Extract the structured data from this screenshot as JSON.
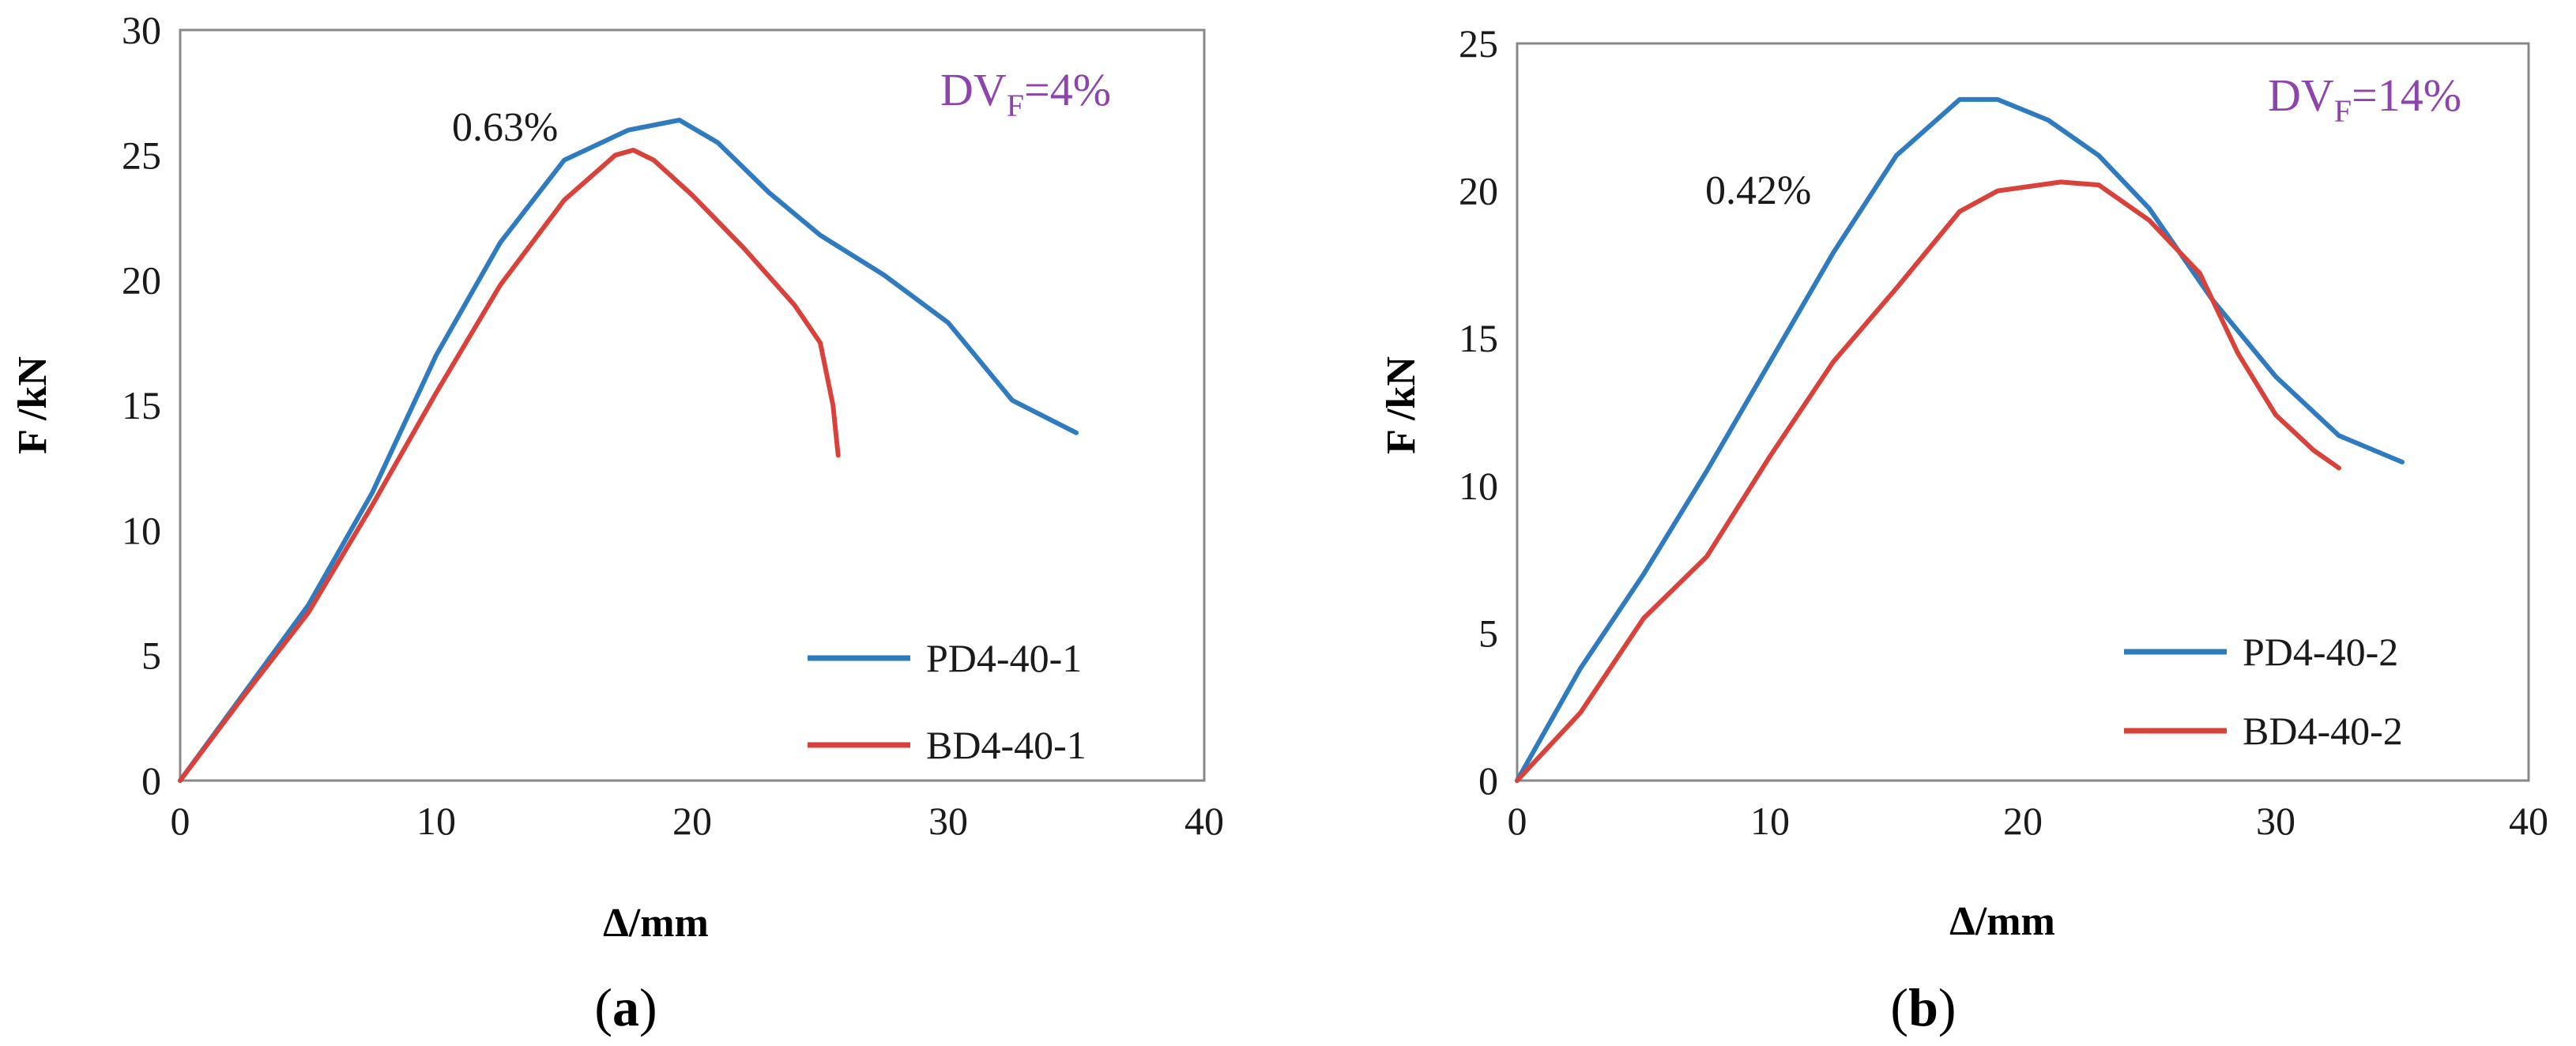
{
  "colors": {
    "blue": "#2E7BC0",
    "red": "#D9423A",
    "purple": "#8E44AD",
    "frame": "#888888"
  },
  "chart_data": [
    {
      "type": "line",
      "caption_open": "(",
      "caption_letter": "a",
      "caption_close": ")",
      "xlabel": "Δ/mm",
      "ylabel": "F /kN",
      "xlim": [
        0,
        40
      ],
      "ylim": [
        0,
        30
      ],
      "xticks": [
        "0",
        "10",
        "20",
        "30",
        "40"
      ],
      "yticks": [
        "0",
        "5",
        "10",
        "15",
        "20",
        "25",
        "30"
      ],
      "annotation": "0.63%",
      "dv_prefix": "DV",
      "dv_sub": "F",
      "dv_value": "=4%",
      "legend_position": "bottom-right",
      "series": [
        {
          "name": "PD4-40-1",
          "color": "blue",
          "x": [
            0,
            2.5,
            5,
            7.5,
            10,
            12.5,
            15,
            17.5,
            19.5,
            21,
            23,
            25,
            27.5,
            30,
            32.5,
            35
          ],
          "y": [
            0,
            3.5,
            7,
            11.5,
            17,
            21.5,
            24.8,
            26,
            26.4,
            25.5,
            23.5,
            21.8,
            20.2,
            18.3,
            15.2,
            13.9
          ]
        },
        {
          "name": "BD4-40-1",
          "color": "red",
          "x": [
            0,
            2.5,
            5,
            7.5,
            10,
            12.5,
            15,
            17,
            17.7,
            18.5,
            20,
            22,
            24,
            25,
            25.5,
            25.7
          ],
          "y": [
            0,
            3.4,
            6.7,
            11,
            15.5,
            19.8,
            23.2,
            25,
            25.2,
            24.8,
            23.4,
            21.3,
            19,
            17.5,
            15,
            13
          ]
        }
      ]
    },
    {
      "type": "line",
      "caption_open": "(",
      "caption_letter": "b",
      "caption_close": ")",
      "xlabel": "Δ/mm",
      "ylabel": "F /kN",
      "xlim": [
        0,
        40
      ],
      "ylim": [
        0,
        25
      ],
      "xticks": [
        "0",
        "10",
        "20",
        "30",
        "40"
      ],
      "yticks": [
        "0",
        "5",
        "10",
        "15",
        "20",
        "25"
      ],
      "annotation": "0.42%",
      "dv_prefix": "DV",
      "dv_sub": "F",
      "dv_value": "=14%",
      "legend_position": "bottom-right",
      "series": [
        {
          "name": "PD4-40-2",
          "color": "blue",
          "x": [
            0,
            2.5,
            5,
            7.5,
            10,
            12.5,
            15,
            17.5,
            19,
            21,
            23,
            25,
            27.5,
            30,
            32.5,
            35
          ],
          "y": [
            0,
            3.8,
            7,
            10.5,
            14.2,
            17.9,
            21.2,
            23.1,
            23.1,
            22.4,
            21.2,
            19.4,
            16.3,
            13.7,
            11.7,
            10.8
          ]
        },
        {
          "name": "BD4-40-2",
          "color": "red",
          "x": [
            0,
            2.5,
            5,
            7.5,
            10,
            12.5,
            15,
            17.5,
            19,
            21.5,
            23,
            25,
            27,
            28.5,
            30,
            31.5,
            32.5
          ],
          "y": [
            0,
            2.3,
            5.5,
            7.6,
            11,
            14.2,
            16.7,
            19.3,
            20,
            20.3,
            20.2,
            19,
            17.2,
            14.5,
            12.4,
            11.2,
            10.6
          ]
        }
      ]
    }
  ]
}
